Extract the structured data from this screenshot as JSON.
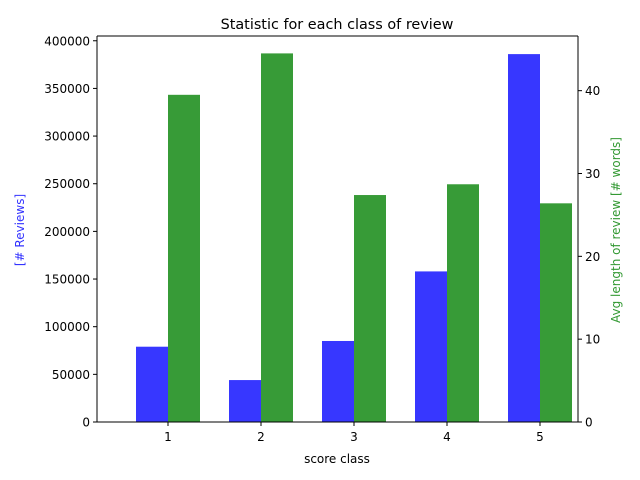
{
  "chart_data": {
    "type": "bar",
    "title": "Statistic for each class of review",
    "xlabel": "score class",
    "categories": [
      "1",
      "2",
      "3",
      "4",
      "5"
    ],
    "y_left": {
      "label": "[# Reviews]",
      "color": "#3333ff",
      "ylim": [
        0,
        405000
      ],
      "ticks": [
        0,
        50000,
        100000,
        150000,
        200000,
        250000,
        300000,
        350000,
        400000
      ]
    },
    "y_right": {
      "label": "Avg length of review [# words]",
      "color": "#339933",
      "ylim": [
        0,
        46.6
      ],
      "ticks": [
        0,
        10,
        20,
        30,
        40
      ]
    },
    "series": [
      {
        "axis": "left",
        "color": "#3333ff",
        "values": [
          79000,
          44000,
          85000,
          158000,
          386000
        ]
      },
      {
        "axis": "right",
        "color": "#339933",
        "values": [
          39.5,
          44.5,
          27.4,
          28.7,
          26.4
        ]
      }
    ]
  }
}
